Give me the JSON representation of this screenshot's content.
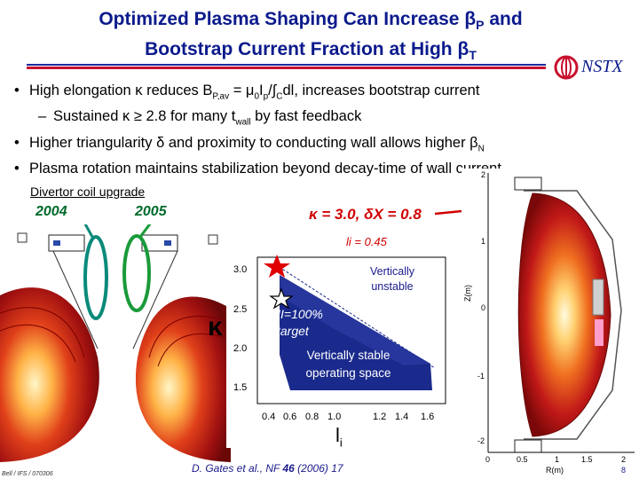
{
  "slide": {
    "title_line1_pre": "Optimized Plasma Shaping Can Increase ",
    "title_line1_sym": "β",
    "title_line1_sub": "P",
    "title_line1_post": " and",
    "title_line2_pre": "Bootstrap Current Fraction at High ",
    "title_line2_sym": "β",
    "title_line2_sub": "T",
    "logo_text": "NSTX"
  },
  "bullets": {
    "b1_a": "High elongation ",
    "b1_k": "κ",
    "b1_b": " reduces B",
    "b1_sub1": "P,av",
    "b1_c": " = μ",
    "b1_sub2": "0",
    "b1_d": "I",
    "b1_sub3": "p",
    "b1_e": "/∫",
    "b1_sub4": "C",
    "b1_f": "dl, increases bootstrap current",
    "s1_dash": "–",
    "s1_a": "Sustained ",
    "s1_k": "κ ≥ 2.8",
    "s1_b": " for many t",
    "s1_sub": "wall",
    "s1_c": " by fast feedback",
    "b2_a": "Higher triangularity ",
    "b2_d": "δ",
    "b2_b": " and proximity to conducting wall allows higher ",
    "b2_beta": "β",
    "b2_sub": "N",
    "b3": "Plasma rotation maintains stabilization beyond decay-time of wall current"
  },
  "figure": {
    "divertor_title": "Divertor coil upgrade",
    "year_2004": "2004",
    "year_2005": "2005",
    "kappa_delta_label": "κ = 3.0, δX = 0.8",
    "li_label": "li = 0.45",
    "kappa_axis": "κ",
    "li_axis_main": "l",
    "li_axis_sub": "i",
    "vertically_unstable_1": "Vertically",
    "vertically_unstable_2": "unstable",
    "fni_1": "fNI=100%",
    "fni_2": "target",
    "stable_1": "Vertically stable",
    "stable_2": "operating space",
    "y_ticks": [
      "3.0",
      "2.5",
      "2.0",
      "1.5"
    ],
    "x_ticks": [
      "0.4",
      "0.6",
      "0.8",
      "1.2",
      "1.4",
      "1.6"
    ],
    "x_tick_1_0": "1.0",
    "eq_y_label": "Z(m)",
    "eq_x_label": "R(m)",
    "eq_y_ticks": [
      "2",
      "1",
      "0",
      "-1",
      "-2"
    ],
    "eq_x_ticks": [
      "0",
      "0.5",
      "1",
      "1.5",
      "2"
    ]
  },
  "footer": {
    "left": "Bell / IFS / 070306",
    "citation_pre": "D. Gates et al., NF ",
    "citation_vol": "46",
    "citation_post": " (2006) 17",
    "page": "8"
  },
  "colors": {
    "title_blue": "#0b1a8c",
    "accent_red": "#c8102e",
    "year_green": "#006a2a",
    "ring_teal": "#0a8a7a",
    "ring_green": "#1a9a3a"
  }
}
